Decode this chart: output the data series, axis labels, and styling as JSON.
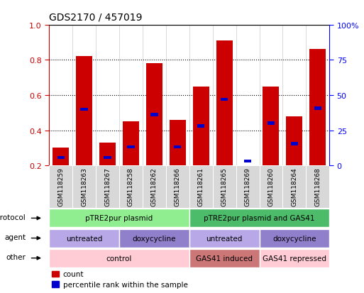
{
  "title": "GDS2170 / 457019",
  "samples": [
    "GSM118259",
    "GSM118263",
    "GSM118267",
    "GSM118258",
    "GSM118262",
    "GSM118266",
    "GSM118261",
    "GSM118265",
    "GSM118269",
    "GSM118260",
    "GSM118264",
    "GSM118268"
  ],
  "red_values": [
    0.3,
    0.82,
    0.33,
    0.45,
    0.78,
    0.46,
    0.65,
    0.91,
    0.2,
    0.65,
    0.48,
    0.86
  ],
  "blue_values": [
    0.245,
    0.52,
    0.245,
    0.305,
    0.49,
    0.305,
    0.425,
    0.575,
    0.225,
    0.44,
    0.325,
    0.525
  ],
  "bar_bottom": 0.2,
  "ylim_min": 0.2,
  "ylim_max": 1.0,
  "yticks_left": [
    0.2,
    0.4,
    0.6,
    0.8,
    1.0
  ],
  "yticks_right": [
    0,
    25,
    50,
    75,
    100
  ],
  "protocol_groups": [
    {
      "label": "pTRE2pur plasmid",
      "start": 0,
      "end": 6,
      "color": "#90EE90"
    },
    {
      "label": "pTRE2pur plasmid and GAS41",
      "start": 6,
      "end": 12,
      "color": "#4CBB6A"
    }
  ],
  "agent_groups": [
    {
      "label": "untreated",
      "start": 0,
      "end": 3,
      "color": "#B8A8E8"
    },
    {
      "label": "doxycycline",
      "start": 3,
      "end": 6,
      "color": "#9080CC"
    },
    {
      "label": "untreated",
      "start": 6,
      "end": 9,
      "color": "#B8A8E8"
    },
    {
      "label": "doxycycline",
      "start": 9,
      "end": 12,
      "color": "#9080CC"
    }
  ],
  "other_groups": [
    {
      "label": "control",
      "start": 0,
      "end": 6,
      "color": "#FFCCD5"
    },
    {
      "label": "GAS41 induced",
      "start": 6,
      "end": 9,
      "color": "#CC7777"
    },
    {
      "label": "GAS41 repressed",
      "start": 9,
      "end": 12,
      "color": "#FFCCD5"
    }
  ],
  "legend_count_color": "#CC0000",
  "legend_pct_color": "#0000CC",
  "bar_color": "#CC0000",
  "blue_marker_color": "#0000CC",
  "bg_color": "#ffffff",
  "axis_left_color": "#CC0000",
  "axis_right_color": "#0000FF",
  "xtick_bg_color": "#D8D8D8",
  "border_color": "#000000"
}
